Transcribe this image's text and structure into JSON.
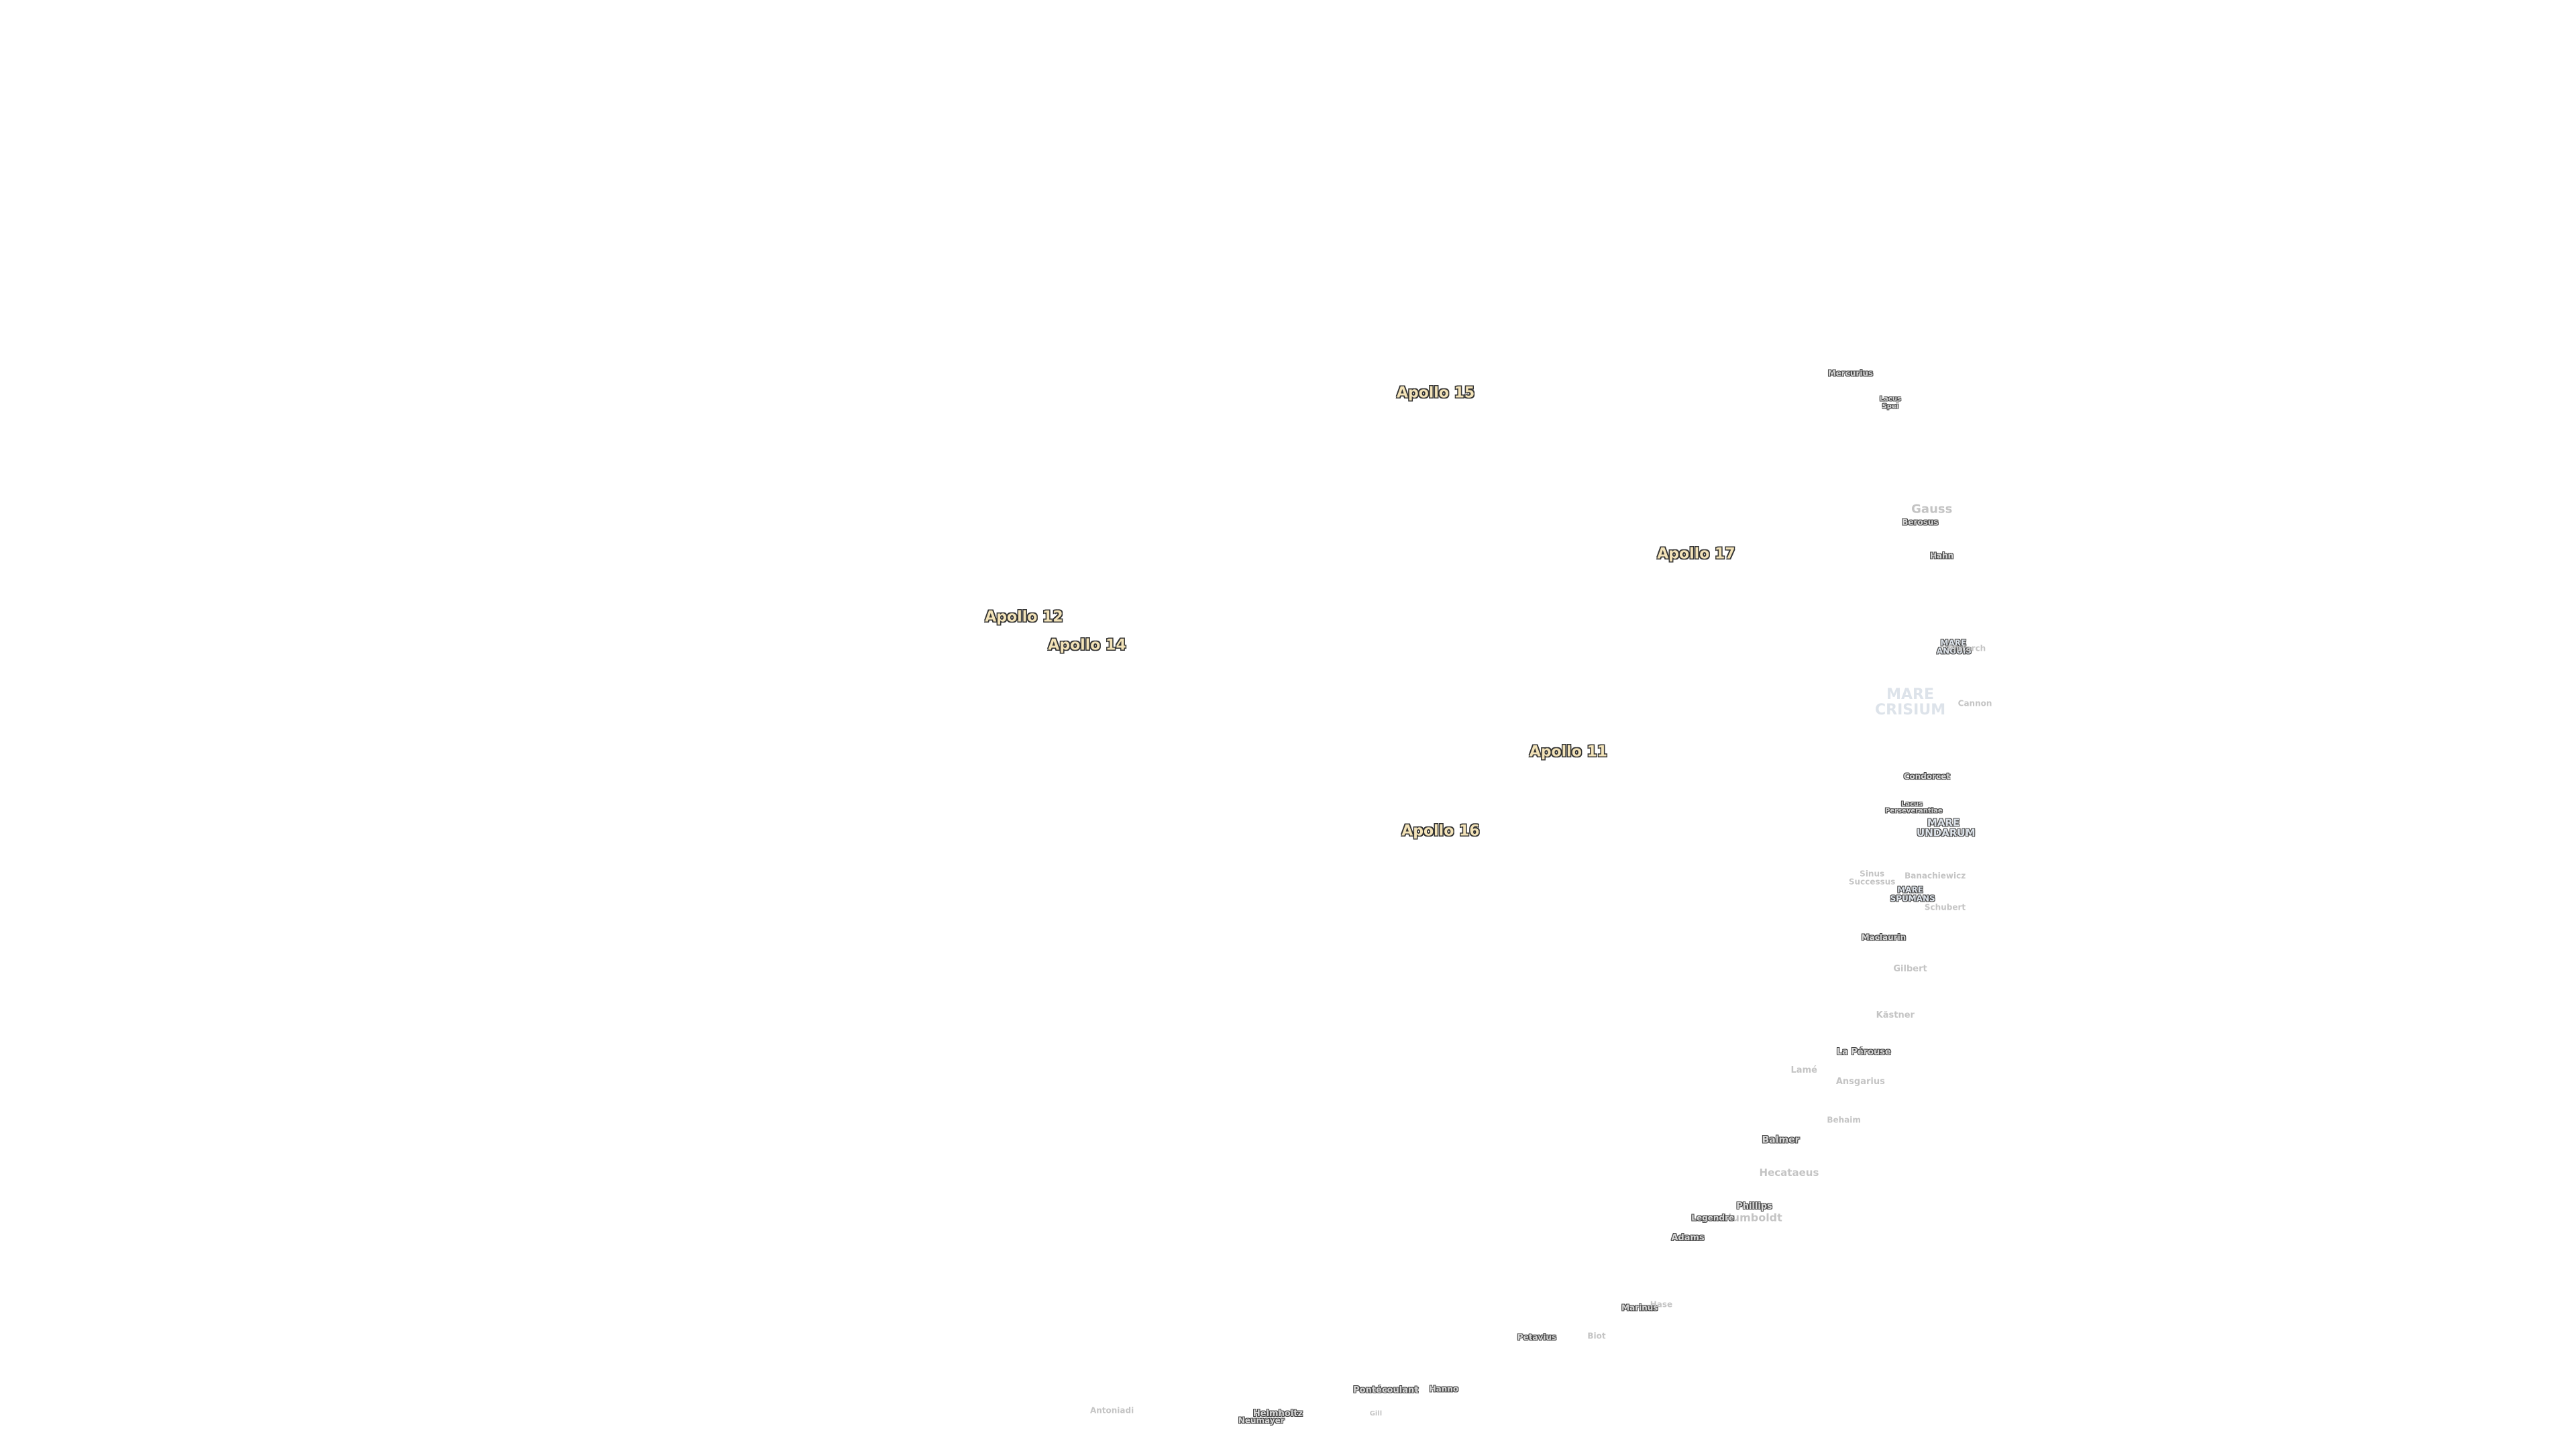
{
  "apollo_sites": [
    "Apollo 15",
    "Apollo 17",
    "Apollo 12",
    "Apollo 14",
    "Apollo 11",
    "Apollo 16"
  ],
  "features": [
    "Mercurius",
    "Lacus Spei",
    "Gauss",
    "Berosus",
    "Hahn",
    "MARE ANGUIS",
    "Plutarch",
    "MARE CRISIUM",
    "Cannon",
    "Condorcet",
    "Lacus Perseverantiae",
    "MARE UNDARUM",
    "Sinus Successus",
    "Banachiewicz",
    "MARE SPUMANS",
    "Schubert",
    "Maclaurin",
    "Gilbert",
    "Kästner",
    "La Pérouse",
    "Lamé",
    "Ansgarius",
    "Behaim",
    "Balmer",
    "Hecataeus",
    "Phillips",
    "Humboldt",
    "Legendre",
    "Adams",
    "Marinus",
    "Hase",
    "Petavius",
    "Biot",
    "Pontécoulant",
    "Hanno",
    "Helmholtz",
    "Neumayer",
    "Gill",
    "Antoniadi"
  ]
}
